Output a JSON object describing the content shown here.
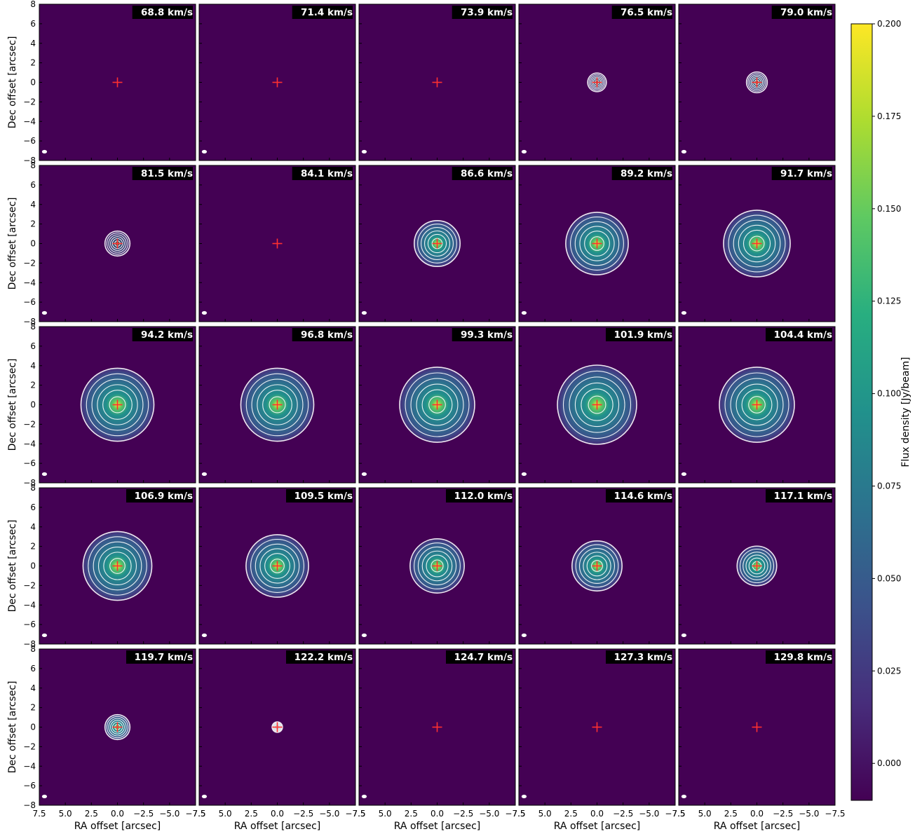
{
  "chart_data": {
    "type": "heatmap",
    "description_panels": "5x5 grid of channel maps",
    "panels": [
      {
        "velocity": "68.8 km/s",
        "peak": 0.0,
        "radius": 0.0
      },
      {
        "velocity": "71.4 km/s",
        "peak": 0.0,
        "radius": 0.0
      },
      {
        "velocity": "73.9 km/s",
        "peak": 0.0,
        "radius": 0.0
      },
      {
        "velocity": "76.5 km/s",
        "peak": 0.02,
        "radius": 0.9
      },
      {
        "velocity": "79.0 km/s",
        "peak": 0.03,
        "radius": 1.0
      },
      {
        "velocity": "81.5 km/s",
        "peak": 0.02,
        "radius": 1.2
      },
      {
        "velocity": "84.1 km/s",
        "peak": 0.0,
        "radius": 0.0
      },
      {
        "velocity": "86.6 km/s",
        "peak": 0.1,
        "radius": 2.2
      },
      {
        "velocity": "89.2 km/s",
        "peak": 0.11,
        "radius": 3.0
      },
      {
        "velocity": "91.7 km/s",
        "peak": 0.12,
        "radius": 3.2
      },
      {
        "velocity": "94.2 km/s",
        "peak": 0.11,
        "radius": 3.5
      },
      {
        "velocity": "96.8 km/s",
        "peak": 0.12,
        "radius": 3.5
      },
      {
        "velocity": "99.3 km/s",
        "peak": 0.12,
        "radius": 3.6
      },
      {
        "velocity": "101.9 km/s",
        "peak": 0.12,
        "radius": 3.8
      },
      {
        "velocity": "104.4 km/s",
        "peak": 0.11,
        "radius": 3.6
      },
      {
        "velocity": "106.9 km/s",
        "peak": 0.13,
        "radius": 3.3
      },
      {
        "velocity": "109.5 km/s",
        "peak": 0.13,
        "radius": 3.0
      },
      {
        "velocity": "112.0 km/s",
        "peak": 0.13,
        "radius": 2.6
      },
      {
        "velocity": "114.6 km/s",
        "peak": 0.13,
        "radius": 2.4
      },
      {
        "velocity": "117.1 km/s",
        "peak": 0.13,
        "radius": 1.9
      },
      {
        "velocity": "119.7 km/s",
        "peak": 0.08,
        "radius": 1.2
      },
      {
        "velocity": "122.2 km/s",
        "peak": 0.05,
        "radius": 0.5
      },
      {
        "velocity": "124.7 km/s",
        "peak": 0.0,
        "radius": 0.0
      },
      {
        "velocity": "127.3 km/s",
        "peak": 0.0,
        "radius": 0.0
      },
      {
        "velocity": "129.8 km/s",
        "peak": 0.0,
        "radius": 0.0
      }
    ],
    "xlabel": "RA offset [arcsec]",
    "ylabel": "Dec offset [arcsec]",
    "xlim": [
      7.5,
      -7.5
    ],
    "ylim": [
      -8,
      8
    ],
    "xticks": [
      "7.5",
      "5.0",
      "2.5",
      "0.0",
      "−2.5",
      "−5.0",
      "−7.5"
    ],
    "yticks": [
      "8",
      "6",
      "4",
      "2",
      "0",
      "−2",
      "−4",
      "−6",
      "−8"
    ],
    "colorbar": {
      "label": "Flux density [Jy/beam]",
      "range": [
        -0.01,
        0.2
      ],
      "ticks": [
        "0.000",
        "0.025",
        "0.050",
        "0.075",
        "0.100",
        "0.125",
        "0.150",
        "0.175",
        "0.200"
      ],
      "tick_values": [
        0.0,
        0.025,
        0.05,
        0.075,
        0.1,
        0.125,
        0.15,
        0.175,
        0.2
      ],
      "colormap": "viridis"
    },
    "marker_color": "#ff3030"
  }
}
